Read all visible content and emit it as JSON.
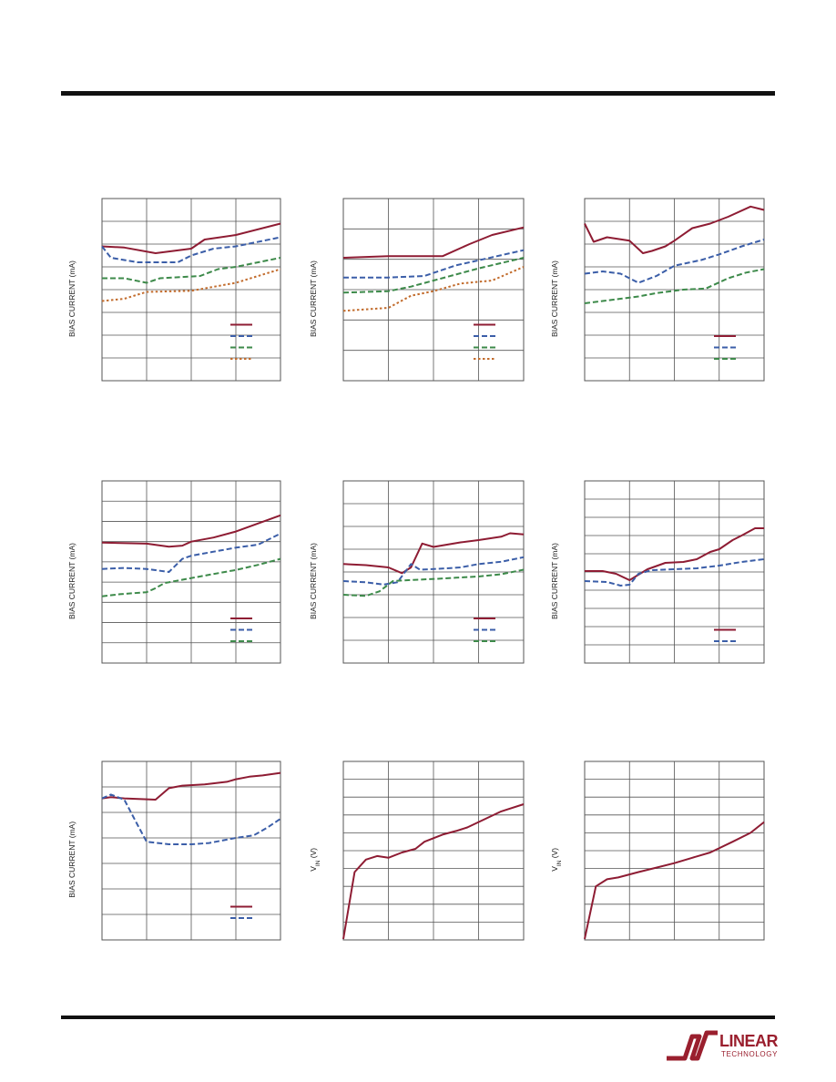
{
  "colors": {
    "red": "#8e1c33",
    "blue": "#3b5ea8",
    "green": "#3d8a4a",
    "orange": "#c26c2d",
    "grid": "#555555",
    "rule": "#111111"
  },
  "logo": {
    "word": "LINEAR",
    "sub": "TECHNOLOGY"
  },
  "chart_data": [
    {
      "type": "line",
      "ylabel": "BIAS CURRENT (mA)",
      "xdivs": 4,
      "ydivs": 8,
      "grid": true,
      "legend": {
        "placement": "bottom-right",
        "entries": 4
      },
      "series": [
        {
          "color": "red",
          "dash": "solid",
          "points": [
            [
              0,
              5.9
            ],
            [
              0.5,
              5.85
            ],
            [
              1.2,
              5.6
            ],
            [
              2,
              5.8
            ],
            [
              2.3,
              6.2
            ],
            [
              3,
              6.4
            ],
            [
              4,
              6.9
            ]
          ]
        },
        {
          "color": "blue",
          "dash": "dash",
          "points": [
            [
              0,
              5.9
            ],
            [
              0.2,
              5.4
            ],
            [
              0.8,
              5.2
            ],
            [
              1.7,
              5.2
            ],
            [
              2,
              5.5
            ],
            [
              2.5,
              5.8
            ],
            [
              3,
              5.9
            ],
            [
              4,
              6.3
            ]
          ]
        },
        {
          "color": "green",
          "dash": "dash",
          "points": [
            [
              0,
              4.5
            ],
            [
              0.5,
              4.5
            ],
            [
              1,
              4.3
            ],
            [
              1.3,
              4.5
            ],
            [
              2.2,
              4.6
            ],
            [
              2.6,
              4.9
            ],
            [
              3,
              5
            ],
            [
              4,
              5.4
            ]
          ]
        },
        {
          "color": "orange",
          "dash": "dot",
          "points": [
            [
              0,
              3.5
            ],
            [
              0.5,
              3.6
            ],
            [
              1,
              3.9
            ],
            [
              2,
              3.95
            ],
            [
              3,
              4.3
            ],
            [
              4,
              4.9
            ]
          ]
        }
      ]
    },
    {
      "type": "line",
      "ylabel": "BIAS CURRENT (mA)",
      "xdivs": 4,
      "ydivs": 6,
      "grid": true,
      "legend": {
        "placement": "bottom-right",
        "entries": 4
      },
      "series": [
        {
          "color": "red",
          "dash": "solid",
          "points": [
            [
              0,
              4.05
            ],
            [
              1,
              4.1
            ],
            [
              2.2,
              4.1
            ],
            [
              2.8,
              4.5
            ],
            [
              3.3,
              4.8
            ],
            [
              4,
              5.05
            ]
          ]
        },
        {
          "color": "blue",
          "dash": "dash",
          "points": [
            [
              0,
              3.4
            ],
            [
              1,
              3.4
            ],
            [
              1.8,
              3.45
            ],
            [
              2.5,
              3.8
            ],
            [
              3.1,
              4
            ],
            [
              3.7,
              4.2
            ],
            [
              4,
              4.3
            ]
          ]
        },
        {
          "color": "green",
          "dash": "dash",
          "points": [
            [
              0,
              2.9
            ],
            [
              1,
              2.95
            ],
            [
              1.5,
              3.1
            ],
            [
              2,
              3.3
            ],
            [
              3,
              3.7
            ],
            [
              4,
              4.05
            ]
          ]
        },
        {
          "color": "orange",
          "dash": "dot",
          "points": [
            [
              0,
              2.3
            ],
            [
              1,
              2.4
            ],
            [
              1.5,
              2.8
            ],
            [
              2,
              2.95
            ],
            [
              2.6,
              3.2
            ],
            [
              3.3,
              3.3
            ],
            [
              4,
              3.75
            ]
          ]
        }
      ]
    },
    {
      "type": "line",
      "ylabel": "BIAS CURRENT (mA)",
      "xdivs": 4,
      "ydivs": 8,
      "grid": true,
      "legend": {
        "placement": "bottom-right",
        "entries": 3
      },
      "series": [
        {
          "color": "red",
          "dash": "solid",
          "points": [
            [
              0,
              6.9
            ],
            [
              0.2,
              6.1
            ],
            [
              0.5,
              6.3
            ],
            [
              1,
              6.15
            ],
            [
              1.3,
              5.6
            ],
            [
              1.5,
              5.7
            ],
            [
              1.8,
              5.9
            ],
            [
              2,
              6.15
            ],
            [
              2.4,
              6.7
            ],
            [
              2.8,
              6.9
            ],
            [
              3.2,
              7.2
            ],
            [
              3.7,
              7.65
            ],
            [
              4,
              7.5
            ]
          ]
        },
        {
          "color": "blue",
          "dash": "dash",
          "points": [
            [
              0,
              4.7
            ],
            [
              0.4,
              4.8
            ],
            [
              0.8,
              4.7
            ],
            [
              1.2,
              4.3
            ],
            [
              1.6,
              4.6
            ],
            [
              2,
              5.05
            ],
            [
              2.6,
              5.3
            ],
            [
              3,
              5.55
            ],
            [
              3.5,
              5.9
            ],
            [
              4,
              6.2
            ]
          ]
        },
        {
          "color": "green",
          "dash": "dash",
          "points": [
            [
              0,
              3.4
            ],
            [
              0.4,
              3.5
            ],
            [
              0.8,
              3.6
            ],
            [
              1.2,
              3.7
            ],
            [
              1.6,
              3.85
            ],
            [
              2.2,
              4
            ],
            [
              2.7,
              4.05
            ],
            [
              3.2,
              4.5
            ],
            [
              3.6,
              4.75
            ],
            [
              4,
              4.9
            ]
          ]
        }
      ]
    },
    {
      "type": "line",
      "ylabel": "BIAS CURRENT (mA)",
      "xdivs": 4,
      "ydivs": 9,
      "grid": true,
      "legend": {
        "placement": "bottom-right",
        "entries": 3
      },
      "series": [
        {
          "color": "red",
          "dash": "solid",
          "points": [
            [
              0,
              5.95
            ],
            [
              1,
              5.9
            ],
            [
              1.5,
              5.75
            ],
            [
              1.8,
              5.8
            ],
            [
              2,
              6
            ],
            [
              2.5,
              6.2
            ],
            [
              3,
              6.5
            ],
            [
              3.5,
              6.9
            ],
            [
              4,
              7.3
            ]
          ]
        },
        {
          "color": "blue",
          "dash": "dash",
          "points": [
            [
              0,
              4.65
            ],
            [
              0.5,
              4.7
            ],
            [
              1,
              4.65
            ],
            [
              1.5,
              4.5
            ],
            [
              1.8,
              5.15
            ],
            [
              2,
              5.3
            ],
            [
              3,
              5.7
            ],
            [
              3.5,
              5.85
            ],
            [
              4,
              6.4
            ]
          ]
        },
        {
          "color": "green",
          "dash": "dash",
          "points": [
            [
              0,
              3.3
            ],
            [
              0.4,
              3.4
            ],
            [
              1,
              3.5
            ],
            [
              1.2,
              3.7
            ],
            [
              1.4,
              3.95
            ],
            [
              2,
              4.2
            ],
            [
              3,
              4.6
            ],
            [
              3.5,
              4.85
            ],
            [
              4,
              5.15
            ]
          ]
        }
      ]
    },
    {
      "type": "line",
      "ylabel": "BIAS CURRENT (mA)",
      "xdivs": 4,
      "ydivs": 8,
      "grid": true,
      "legend": {
        "placement": "bottom-right",
        "entries": 3
      },
      "series": [
        {
          "color": "red",
          "dash": "solid",
          "points": [
            [
              0,
              4.35
            ],
            [
              0.5,
              4.3
            ],
            [
              1,
              4.2
            ],
            [
              1.3,
              3.95
            ],
            [
              1.5,
              4.2
            ],
            [
              1.75,
              5.25
            ],
            [
              2,
              5.1
            ],
            [
              2.6,
              5.3
            ],
            [
              3,
              5.4
            ],
            [
              3.5,
              5.55
            ],
            [
              3.7,
              5.7
            ],
            [
              4,
              5.65
            ]
          ]
        },
        {
          "color": "blue",
          "dash": "dash",
          "points": [
            [
              0,
              3.6
            ],
            [
              0.5,
              3.55
            ],
            [
              0.9,
              3.45
            ],
            [
              1.2,
              3.55
            ],
            [
              1.5,
              4.35
            ],
            [
              1.7,
              4.1
            ],
            [
              2.2,
              4.15
            ],
            [
              2.6,
              4.2
            ],
            [
              3,
              4.35
            ],
            [
              3.5,
              4.45
            ],
            [
              4,
              4.65
            ]
          ]
        },
        {
          "color": "green",
          "dash": "dash",
          "points": [
            [
              0,
              3
            ],
            [
              0.5,
              2.95
            ],
            [
              0.8,
              3.15
            ],
            [
              1.1,
              3.6
            ],
            [
              1.5,
              3.65
            ],
            [
              2.1,
              3.7
            ],
            [
              2.5,
              3.75
            ],
            [
              3,
              3.8
            ],
            [
              3.5,
              3.9
            ],
            [
              4,
              4.1
            ]
          ]
        }
      ]
    },
    {
      "type": "line",
      "ylabel": "BIAS CURRENT (mA)",
      "xdivs": 4,
      "ydivs": 10,
      "grid": true,
      "legend": {
        "placement": "bottom-right",
        "entries": 2
      },
      "series": [
        {
          "color": "red",
          "dash": "solid",
          "points": [
            [
              0,
              5.05
            ],
            [
              0.4,
              5.05
            ],
            [
              0.7,
              4.9
            ],
            [
              1,
              4.55
            ],
            [
              1.2,
              4.85
            ],
            [
              1.4,
              5.15
            ],
            [
              1.8,
              5.5
            ],
            [
              2.2,
              5.55
            ],
            [
              2.5,
              5.7
            ],
            [
              2.8,
              6.1
            ],
            [
              3,
              6.25
            ],
            [
              3.3,
              6.75
            ],
            [
              3.5,
              7
            ],
            [
              3.8,
              7.4
            ],
            [
              4,
              7.4
            ]
          ]
        },
        {
          "color": "blue",
          "dash": "dash",
          "points": [
            [
              0,
              4.5
            ],
            [
              0.5,
              4.45
            ],
            [
              0.8,
              4.25
            ],
            [
              1,
              4.3
            ],
            [
              1.2,
              4.9
            ],
            [
              1.5,
              5.1
            ],
            [
              2,
              5.15
            ],
            [
              2.5,
              5.2
            ],
            [
              3,
              5.35
            ],
            [
              3.5,
              5.55
            ],
            [
              4,
              5.7
            ]
          ]
        }
      ]
    },
    {
      "type": "line",
      "ylabel": "BIAS CURRENT (mA)",
      "xdivs": 4,
      "ydivs": 7,
      "grid": true,
      "legend": {
        "placement": "bottom-right",
        "entries": 2
      },
      "series": [
        {
          "color": "red",
          "dash": "solid",
          "points": [
            [
              0,
              5.55
            ],
            [
              0.2,
              5.6
            ],
            [
              0.5,
              5.55
            ],
            [
              1.2,
              5.5
            ],
            [
              1.5,
              5.95
            ],
            [
              1.8,
              6.05
            ],
            [
              2.3,
              6.1
            ],
            [
              2.8,
              6.2
            ],
            [
              3,
              6.3
            ],
            [
              3.3,
              6.4
            ],
            [
              3.6,
              6.45
            ],
            [
              4,
              6.55
            ]
          ]
        },
        {
          "color": "blue",
          "dash": "dash",
          "points": [
            [
              0,
              5.55
            ],
            [
              0.2,
              5.7
            ],
            [
              0.5,
              5.5
            ],
            [
              0.8,
              4.5
            ],
            [
              1,
              3.85
            ],
            [
              1.5,
              3.75
            ],
            [
              2,
              3.75
            ],
            [
              2.4,
              3.8
            ],
            [
              3,
              4
            ],
            [
              3.4,
              4.1
            ],
            [
              3.7,
              4.4
            ],
            [
              4,
              4.75
            ]
          ]
        }
      ]
    },
    {
      "type": "line",
      "ylabel": "V",
      "ysub": "IN",
      "yunit": " (V)",
      "xdivs": 4,
      "ydivs": 10,
      "grid": true,
      "legend": {
        "placement": "none",
        "entries": 0
      },
      "series": [
        {
          "color": "red",
          "dash": "solid",
          "points": [
            [
              0,
              0.05
            ],
            [
              0.25,
              3.8
            ],
            [
              0.5,
              4.5
            ],
            [
              0.75,
              4.7
            ],
            [
              1,
              4.6
            ],
            [
              1.3,
              4.9
            ],
            [
              1.6,
              5.1
            ],
            [
              1.8,
              5.5
            ],
            [
              2.2,
              5.9
            ],
            [
              2.5,
              6.1
            ],
            [
              2.75,
              6.3
            ],
            [
              3,
              6.6
            ],
            [
              3.5,
              7.2
            ],
            [
              4,
              7.6
            ]
          ]
        }
      ]
    },
    {
      "type": "line",
      "ylabel": "V",
      "ysub": "IN",
      "yunit": " (V)",
      "xdivs": 4,
      "ydivs": 10,
      "grid": true,
      "legend": {
        "placement": "none",
        "entries": 0
      },
      "series": [
        {
          "color": "red",
          "dash": "solid",
          "points": [
            [
              0,
              0.05
            ],
            [
              0.25,
              3
            ],
            [
              0.5,
              3.4
            ],
            [
              0.75,
              3.5
            ],
            [
              1.2,
              3.8
            ],
            [
              1.6,
              4.05
            ],
            [
              2,
              4.3
            ],
            [
              2.4,
              4.6
            ],
            [
              2.8,
              4.9
            ],
            [
              3.3,
              5.5
            ],
            [
              3.7,
              6
            ],
            [
              4,
              6.6
            ]
          ]
        }
      ]
    }
  ]
}
